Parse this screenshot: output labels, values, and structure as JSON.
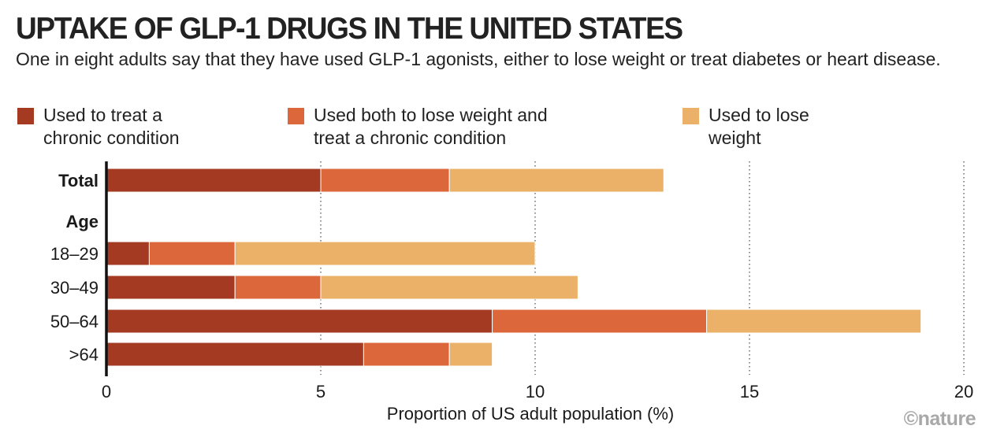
{
  "title": "UPTAKE OF GLP-1 DRUGS IN THE UNITED STATES",
  "subtitle": "One in eight adults say that they have used GLP-1 agonists, either to lose weight or treat diabetes or heart disease.",
  "colors": {
    "chronic": "#a33a21",
    "both": "#dc673a",
    "weight": "#ebb169"
  },
  "legend": [
    {
      "label_line1": "Used to treat a",
      "label_line2": "chronic condition"
    },
    {
      "label_line1": "Used both to lose weight and",
      "label_line2": "treat a chronic condition"
    },
    {
      "label_line1": "Used to lose",
      "label_line2": "weight"
    }
  ],
  "credit": "©nature",
  "chart_data": {
    "type": "bar",
    "orientation": "horizontal",
    "stacked": true,
    "title": "UPTAKE OF GLP-1 DRUGS IN THE UNITED STATES",
    "xlabel": "Proportion of US adult population (%)",
    "ylabel": "",
    "xlim": [
      0,
      20
    ],
    "xticks": [
      0,
      5,
      10,
      15,
      20
    ],
    "grid": "vertical dotted",
    "group_heading": "Age",
    "categories": [
      "Total",
      "18–29",
      "30–49",
      "50–64",
      ">64"
    ],
    "series": [
      {
        "name": "Used to treat a chronic condition",
        "values": [
          5,
          1,
          3,
          9,
          6
        ]
      },
      {
        "name": "Used both to lose weight and treat a chronic condition",
        "values": [
          3,
          2,
          2,
          5,
          2
        ]
      },
      {
        "name": "Used to lose weight",
        "values": [
          5,
          7,
          6,
          5,
          1
        ]
      }
    ]
  }
}
